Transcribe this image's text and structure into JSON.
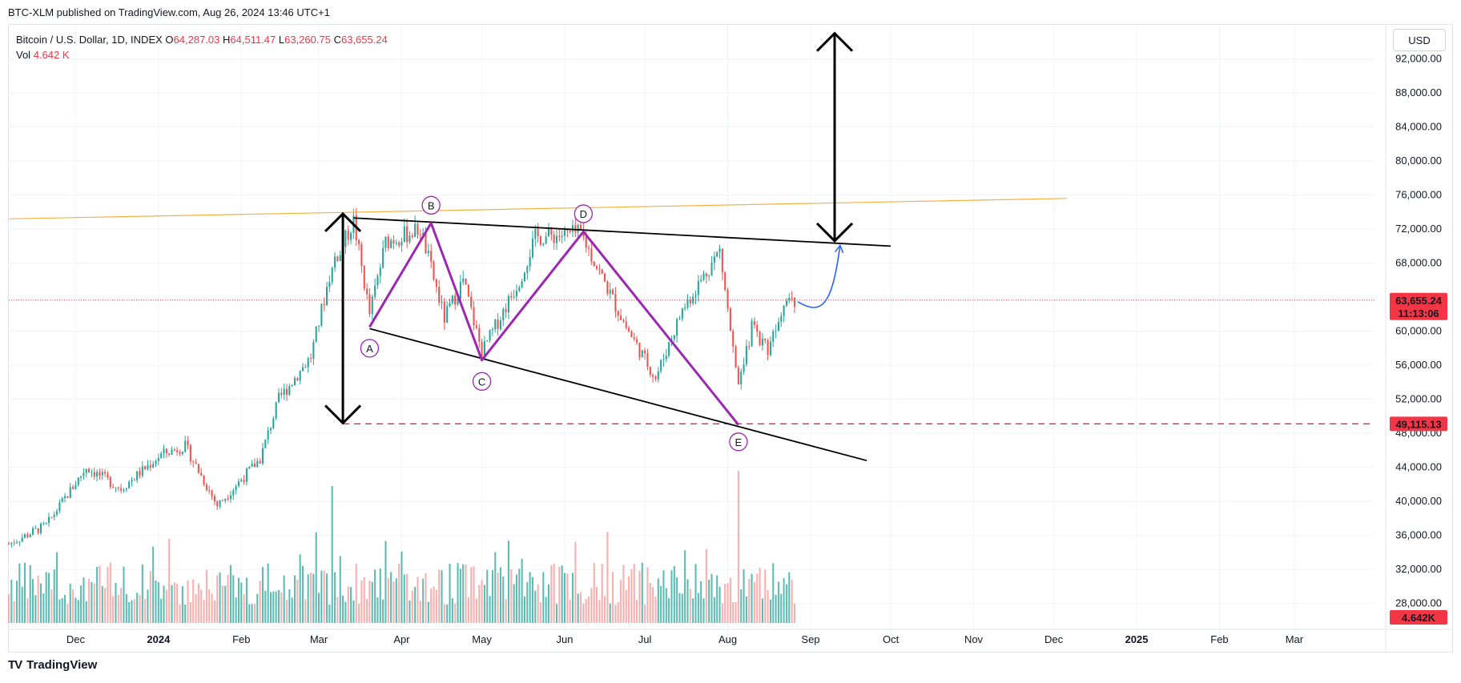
{
  "header": {
    "published": "BTC-XLM published on TradingView.com, Aug 26, 2024 13:46 UTC+1"
  },
  "legend": {
    "symbol": "Bitcoin / U.S. Dollar, 1D, INDEX",
    "o_label": "O",
    "o_value": "64,287.03",
    "h_label": "H",
    "h_value": "64,511.47",
    "l_label": "L",
    "l_value": "63,260.75",
    "c_label": "C",
    "c_value": "63,655.24",
    "vol_label": "Vol",
    "vol_value": "4.642 K"
  },
  "currency": "USD",
  "footer": {
    "brand": "TradingView",
    "logo": "TV"
  },
  "colors": {
    "up": "#26a69a",
    "down": "#ef5350",
    "vol_up": "#26a69a",
    "vol_down": "#f7a1a0",
    "pattern": "#9c27b0",
    "trendline": "#000000",
    "resistance": "#f5b041",
    "support_dash": "#e91e63",
    "arrow_blue": "#2962ff",
    "price_label": "#f23645"
  },
  "chart_data": {
    "type": "candlestick",
    "x_start": "2023-11-06",
    "x_end": "2025-03-31",
    "ylim": [
      26000,
      96000
    ],
    "y_ticks": [
      28000,
      32000,
      36000,
      40000,
      44000,
      48000,
      52000,
      56000,
      60000,
      64000,
      68000,
      72000,
      76000,
      80000,
      84000,
      88000,
      92000
    ],
    "y_tick_labels": [
      "28,000.00",
      "32,000.00",
      "36,000.00",
      "40,000.00",
      "44,000.00",
      "48,000.00",
      "52,000.00",
      "56,000.00",
      "60,000.00",
      "64,000.00",
      "68,000.00",
      "72,000.00",
      "76,000.00",
      "80,000.00",
      "84,000.00",
      "88,000.00",
      "92,000.00"
    ],
    "x_ticks": [
      {
        "date": "2023-12-01",
        "label": "Dec"
      },
      {
        "date": "2024-01-01",
        "label": "2024"
      },
      {
        "date": "2024-02-01",
        "label": "Feb"
      },
      {
        "date": "2024-03-01",
        "label": "Mar"
      },
      {
        "date": "2024-04-01",
        "label": "Apr"
      },
      {
        "date": "2024-05-01",
        "label": "May"
      },
      {
        "date": "2024-06-01",
        "label": "Jun"
      },
      {
        "date": "2024-07-01",
        "label": "Jul"
      },
      {
        "date": "2024-08-01",
        "label": "Aug"
      },
      {
        "date": "2024-09-01",
        "label": "Sep"
      },
      {
        "date": "2024-10-01",
        "label": "Oct"
      },
      {
        "date": "2024-11-01",
        "label": "Nov"
      },
      {
        "date": "2024-12-01",
        "label": "Dec"
      },
      {
        "date": "2025-01-01",
        "label": "2025"
      },
      {
        "date": "2025-02-01",
        "label": "Feb"
      },
      {
        "date": "2025-03-01",
        "label": "Mar"
      }
    ],
    "price_path": [
      [
        "2023-11-06",
        35000
      ],
      [
        "2023-11-20",
        37200
      ],
      [
        "2023-12-05",
        44000
      ],
      [
        "2023-12-18",
        41500
      ],
      [
        "2024-01-02",
        45500
      ],
      [
        "2024-01-11",
        46500
      ],
      [
        "2024-01-23",
        39500
      ],
      [
        "2024-02-08",
        45000
      ],
      [
        "2024-02-15",
        52000
      ],
      [
        "2024-02-27",
        57000
      ],
      [
        "2024-03-05",
        66500
      ],
      [
        "2024-03-14",
        73000
      ],
      [
        "2024-03-20",
        62000
      ],
      [
        "2024-03-26",
        70500
      ],
      [
        "2024-04-08",
        72000
      ],
      [
        "2024-04-17",
        61500
      ],
      [
        "2024-04-24",
        66000
      ],
      [
        "2024-05-01",
        57500
      ],
      [
        "2024-05-15",
        66000
      ],
      [
        "2024-05-21",
        71000
      ],
      [
        "2024-06-07",
        71500
      ],
      [
        "2024-06-24",
        60500
      ],
      [
        "2024-07-05",
        54500
      ],
      [
        "2024-07-15",
        62500
      ],
      [
        "2024-07-29",
        69500
      ],
      [
        "2024-08-05",
        53000
      ],
      [
        "2024-08-10",
        60500
      ],
      [
        "2024-08-16",
        58000
      ],
      [
        "2024-08-23",
        64500
      ],
      [
        "2024-08-26",
        63655
      ]
    ],
    "volume_spikes": [
      {
        "date": "2024-03-06",
        "volume_frac": 0.9
      },
      {
        "date": "2024-08-05",
        "volume_frac": 1.0
      }
    ],
    "last_price": {
      "value": 63655.24,
      "label": "63,655.24",
      "countdown": "11:13:06"
    },
    "support_level": {
      "value": 49115.13,
      "label": "49,115.13",
      "from": "2024-03-10"
    },
    "volume_label": "4.642K",
    "pattern_points": [
      {
        "label": "A",
        "date": "2024-03-20",
        "price": 60500,
        "label_price": 58000
      },
      {
        "label": "B",
        "date": "2024-04-12",
        "price": 72700,
        "label_price": 74800
      },
      {
        "label": "C",
        "date": "2024-05-01",
        "price": 56600,
        "label_price": 54100
      },
      {
        "label": "D",
        "date": "2024-06-08",
        "price": 71700,
        "label_price": 73800
      },
      {
        "label": "E",
        "date": "2024-08-05",
        "price": 49000,
        "label_price": 47000
      }
    ],
    "trendlines": [
      {
        "name": "upper",
        "from": [
          "2024-03-14",
          73300
        ],
        "to": [
          "2024-10-01",
          70000
        ]
      },
      {
        "name": "lower",
        "from": [
          "2024-03-20",
          60300
        ],
        "to": [
          "2024-09-22",
          44800
        ]
      },
      {
        "name": "resistance",
        "from": [
          "2023-11-06",
          73200
        ],
        "to": [
          "2024-12-06",
          75600
        ]
      }
    ],
    "measure_arrows": [
      {
        "date": "2024-03-10",
        "from": 49200,
        "to": 73800
      },
      {
        "date": "2024-09-10",
        "from": 70600,
        "to": 95000
      }
    ],
    "projection": {
      "from": [
        "2024-08-26",
        63655
      ],
      "to": [
        "2024-09-12",
        70000
      ]
    }
  }
}
